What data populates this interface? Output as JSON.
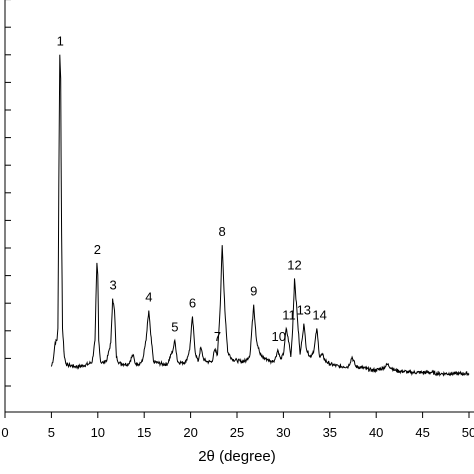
{
  "chart_data": {
    "type": "line",
    "xlabel": "2θ (degree)",
    "ylabel": "",
    "xlim": [
      0,
      50
    ],
    "x_ticks": [
      0,
      5,
      10,
      15,
      20,
      25,
      30,
      35,
      40,
      45,
      50
    ],
    "y_tick_count": 15,
    "grid": false,
    "series": [
      {
        "color": "#000000",
        "x": [
          5.0,
          5.2,
          5.4,
          5.6,
          5.7,
          5.8,
          5.9,
          6.0,
          6.1,
          6.2,
          6.4,
          6.6,
          6.8,
          7.0,
          7.5,
          8.0,
          8.5,
          9.0,
          9.4,
          9.7,
          9.9,
          10.0,
          10.1,
          10.3,
          10.6,
          11.0,
          11.4,
          11.6,
          11.8,
          12.0,
          12.3,
          12.8,
          13.3,
          13.8,
          14.0,
          14.3,
          14.8,
          15.2,
          15.5,
          15.7,
          16.0,
          16.5,
          17.0,
          17.5,
          18.1,
          18.3,
          18.6,
          19.0,
          19.5,
          19.9,
          20.2,
          20.5,
          20.8,
          21.1,
          21.4,
          21.8,
          22.3,
          22.6,
          22.9,
          23.2,
          23.4,
          23.7,
          24.0,
          24.5,
          25.0,
          25.5,
          26.0,
          26.4,
          26.8,
          27.1,
          27.5,
          27.9,
          28.3,
          28.7,
          29.1,
          29.4,
          29.7,
          30.0,
          30.3,
          30.6,
          30.8,
          31.0,
          31.2,
          31.5,
          31.8,
          32.0,
          32.2,
          32.5,
          32.9,
          33.3,
          33.6,
          33.9,
          34.2,
          34.5,
          35.0,
          35.5,
          36.0,
          36.5,
          37.0,
          37.4,
          37.8,
          38.5,
          39.0,
          39.5,
          40.0,
          40.5,
          41.0,
          41.2,
          41.6,
          42.0,
          42.5,
          43.0,
          43.5,
          44.0,
          44.5,
          45.0,
          45.5,
          46.0,
          46.5,
          47.0,
          47.5,
          48.0,
          48.5,
          49.0,
          49.5,
          50.0
        ],
        "y": [
          8,
          14,
          28,
          30,
          40,
          160,
          270,
          250,
          120,
          40,
          16,
          10,
          9,
          9,
          8,
          8,
          9,
          10,
          12,
          30,
          95,
          85,
          30,
          12,
          11,
          14,
          28,
          65,
          55,
          16,
          11,
          10,
          10,
          18,
          11,
          10,
          12,
          30,
          55,
          35,
          12,
          11,
          10,
          10,
          22,
          30,
          12,
          11,
          12,
          22,
          50,
          20,
          12,
          24,
          14,
          12,
          12,
          22,
          18,
          60,
          110,
          55,
          20,
          14,
          13,
          12,
          13,
          18,
          60,
          30,
          18,
          15,
          14,
          12,
          14,
          22,
          14,
          18,
          40,
          28,
          16,
          40,
          82,
          50,
          18,
          30,
          44,
          22,
          16,
          22,
          40,
          16,
          18,
          13,
          10,
          9,
          8,
          8,
          8,
          16,
          8,
          7,
          6,
          5,
          5,
          6,
          8,
          10,
          7,
          5,
          4,
          4,
          3,
          3,
          3,
          3,
          3,
          3,
          2,
          2,
          2,
          2,
          2,
          2,
          2,
          2
        ]
      }
    ],
    "annotations": [
      {
        "text": "1",
        "x": 5.95,
        "y": 270
      },
      {
        "text": "2",
        "x": 9.95,
        "y": 95
      },
      {
        "text": "3",
        "x": 11.65,
        "y": 65
      },
      {
        "text": "4",
        "x": 15.5,
        "y": 55
      },
      {
        "text": "5",
        "x": 18.3,
        "y": 30
      },
      {
        "text": "6",
        "x": 20.2,
        "y": 50
      },
      {
        "text": "7",
        "x": 22.9,
        "y": 22
      },
      {
        "text": "8",
        "x": 23.4,
        "y": 110
      },
      {
        "text": "9",
        "x": 26.8,
        "y": 60
      },
      {
        "text": "10",
        "x": 29.5,
        "y": 22
      },
      {
        "text": "11",
        "x": 30.6,
        "y": 40
      },
      {
        "text": "12",
        "x": 31.2,
        "y": 82
      },
      {
        "text": "13",
        "x": 32.2,
        "y": 44
      },
      {
        "text": "14",
        "x": 33.9,
        "y": 40
      }
    ]
  }
}
